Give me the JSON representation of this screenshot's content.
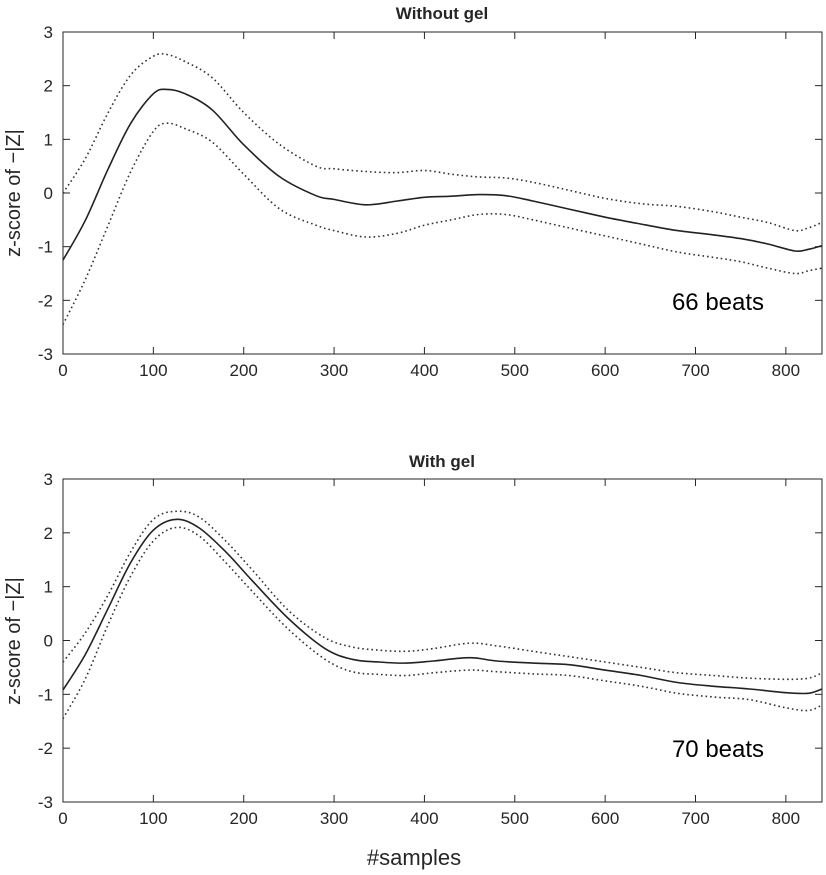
{
  "chart_data": [
    {
      "type": "line",
      "title": "Without gel",
      "xlabel": "",
      "ylabel": "z-score of −|Z|",
      "xlim": [
        0,
        840
      ],
      "ylim": [
        -3,
        3
      ],
      "xticks": [
        0,
        100,
        200,
        300,
        400,
        500,
        600,
        700,
        800
      ],
      "yticks": [
        -3,
        -2,
        -1,
        0,
        1,
        2,
        3
      ],
      "annotation": "66 beats",
      "grid": false,
      "x": [
        0,
        25,
        50,
        75,
        100,
        115,
        135,
        165,
        200,
        240,
        280,
        300,
        335,
        370,
        400,
        430,
        460,
        490,
        520,
        560,
        600,
        640,
        680,
        720,
        750,
        780,
        810,
        825,
        840
      ],
      "series": [
        {
          "values": [
            -1.25,
            -0.5,
            0.45,
            1.3,
            1.85,
            1.93,
            1.85,
            1.55,
            0.9,
            0.3,
            -0.05,
            -0.12,
            -0.22,
            -0.15,
            -0.08,
            -0.06,
            -0.03,
            -0.05,
            -0.15,
            -0.3,
            -0.45,
            -0.58,
            -0.7,
            -0.78,
            -0.85,
            -0.95,
            -1.08,
            -1.05,
            -0.98
          ]
        },
        {
          "values": [
            0.0,
            0.65,
            1.5,
            2.2,
            2.55,
            2.58,
            2.45,
            2.15,
            1.5,
            0.9,
            0.5,
            0.45,
            0.4,
            0.38,
            0.42,
            0.35,
            0.3,
            0.28,
            0.2,
            0.05,
            -0.1,
            -0.2,
            -0.25,
            -0.35,
            -0.45,
            -0.55,
            -0.7,
            -0.65,
            -0.55
          ]
        },
        {
          "values": [
            -2.45,
            -1.6,
            -0.6,
            0.4,
            1.15,
            1.3,
            1.2,
            0.95,
            0.35,
            -0.3,
            -0.6,
            -0.7,
            -0.82,
            -0.75,
            -0.6,
            -0.5,
            -0.4,
            -0.4,
            -0.5,
            -0.65,
            -0.8,
            -0.95,
            -1.1,
            -1.2,
            -1.28,
            -1.4,
            -1.5,
            -1.45,
            -1.4
          ]
        }
      ]
    },
    {
      "type": "line",
      "title": "With gel",
      "xlabel": "#samples",
      "ylabel": "z-score of −|Z|",
      "xlim": [
        0,
        840
      ],
      "ylim": [
        -3,
        3
      ],
      "xticks": [
        0,
        100,
        200,
        300,
        400,
        500,
        600,
        700,
        800
      ],
      "yticks": [
        -3,
        -2,
        -1,
        0,
        1,
        2,
        3
      ],
      "annotation": "70 beats",
      "grid": false,
      "x": [
        0,
        25,
        50,
        75,
        100,
        125,
        150,
        180,
        210,
        250,
        290,
        320,
        350,
        380,
        410,
        450,
        480,
        520,
        560,
        600,
        640,
        680,
        720,
        760,
        800,
        825,
        840
      ],
      "series": [
        {
          "values": [
            -0.92,
            -0.25,
            0.6,
            1.45,
            2.05,
            2.25,
            2.1,
            1.65,
            1.1,
            0.4,
            -0.15,
            -0.35,
            -0.4,
            -0.42,
            -0.38,
            -0.32,
            -0.38,
            -0.42,
            -0.45,
            -0.55,
            -0.65,
            -0.78,
            -0.85,
            -0.9,
            -0.97,
            -0.98,
            -0.9
          ]
        },
        {
          "values": [
            -0.4,
            0.15,
            0.85,
            1.65,
            2.25,
            2.4,
            2.3,
            1.85,
            1.3,
            0.55,
            0.05,
            -0.12,
            -0.18,
            -0.2,
            -0.15,
            -0.05,
            -0.1,
            -0.2,
            -0.3,
            -0.4,
            -0.5,
            -0.6,
            -0.65,
            -0.7,
            -0.72,
            -0.7,
            -0.6
          ]
        },
        {
          "values": [
            -1.45,
            -0.7,
            0.3,
            1.2,
            1.85,
            2.1,
            1.95,
            1.45,
            0.9,
            0.2,
            -0.35,
            -0.58,
            -0.63,
            -0.65,
            -0.6,
            -0.55,
            -0.58,
            -0.62,
            -0.65,
            -0.75,
            -0.85,
            -0.98,
            -1.05,
            -1.1,
            -1.25,
            -1.3,
            -1.2
          ]
        }
      ]
    }
  ]
}
